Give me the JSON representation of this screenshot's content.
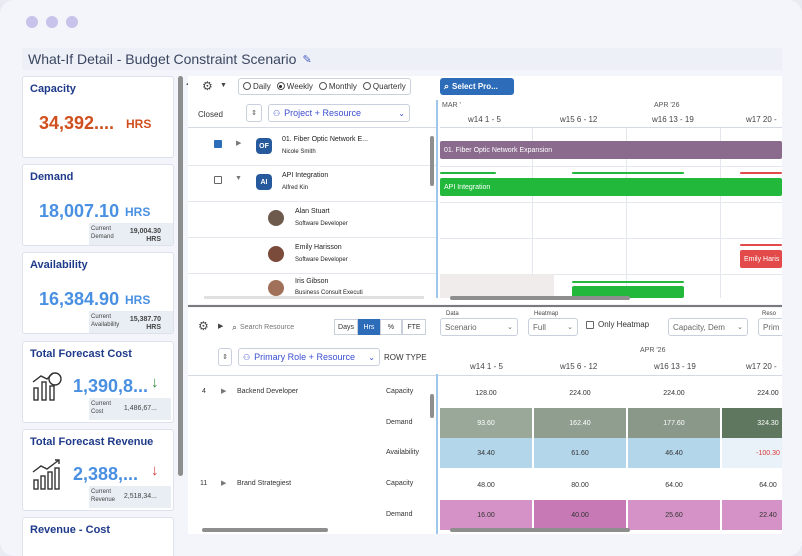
{
  "window": {
    "title": "What-If Detail - Budget Constraint Scenario"
  },
  "kpis": [
    {
      "title": "Capacity",
      "value": "34,392....",
      "unit": "HRS",
      "color": "#d04f1f"
    },
    {
      "title": "Demand",
      "value": "18,007.10",
      "unit": "HRS",
      "color": "#4a90e2",
      "sub_label": "Current Demand",
      "sub_value": "19,004.30 HRS"
    },
    {
      "title": "Availability",
      "value": "16,384.90",
      "unit": "HRS",
      "color": "#4a90e2",
      "sub_label": "Current Availability",
      "sub_value": "15,387.70 HRS"
    },
    {
      "title": "Total Forecast Cost",
      "value": "1,390,8...",
      "color": "#4a90e2",
      "sub_label": "Current Cost",
      "sub_value": "1,486,67...",
      "trend": "down",
      "trend_color": "#2e8b3b"
    },
    {
      "title": "Total Forecast Revenue",
      "value": "2,388,...",
      "color": "#4a90e2",
      "sub_label": "Current Revenue",
      "sub_value": "2,518,34...",
      "trend": "down",
      "trend_color": "#d93a3a"
    },
    {
      "title": "Revenue - Cost"
    }
  ],
  "gantt": {
    "period_options": [
      "Daily",
      "Weekly",
      "Monthly",
      "Quarterly"
    ],
    "selected_period": "Weekly",
    "select_button": "Select Pro...",
    "closed_label": "Closed",
    "grouping_label": "Project + Resource",
    "month_labels": [
      "MAR '",
      "APR '26"
    ],
    "weeks": [
      "w14 1 - 5",
      "w15 6 - 12",
      "w16 13 - 19",
      "w17 20 -"
    ],
    "rows": [
      {
        "avatar": "OF",
        "name": "01. Fiber Optic Network E...",
        "sub": "Nicole Smith",
        "checked": true,
        "bar_label": "01. Fiber Optic Network Expansion"
      },
      {
        "avatar": "AI",
        "name": "API Integration",
        "sub": "Alfred Kin",
        "checked": false,
        "bar_label": "API Integration"
      },
      {
        "name": "Alan Stuart",
        "sub": "Software Developer"
      },
      {
        "name": "Emily Harisson",
        "sub": "Software Developer",
        "bar_label": "Emily Haris"
      },
      {
        "name": "Iris Gibson",
        "sub": "Business Consult Executi"
      }
    ],
    "colors": {
      "project_bar": "#8a6b8e",
      "api_bar": "#22b83c",
      "emily_bar": "#e34b4b"
    }
  },
  "grid": {
    "search_placeholder": "Search Resource",
    "unit_tabs": [
      "Days",
      "Hrs",
      "%",
      "FTE"
    ],
    "active_unit": "Hrs",
    "data_label": "Data",
    "data_value": "Scenario",
    "heatmap_label": "Heatmap",
    "heatmap_value": "Full",
    "only_heatmap_label": "Only Heatmap",
    "rows_filter_value": "Capacity, Dem",
    "reso_label": "Reso",
    "reso_value": "Prim",
    "group_label": "Primary Role + Resource",
    "row_type_header": "ROW TYPE",
    "month_label": "APR '26",
    "weeks": [
      "w14 1 - 5",
      "w15 6 - 12",
      "w16 13 - 19",
      "w17 20 -"
    ],
    "roles": [
      {
        "num": "4",
        "name": "Backend Developer",
        "rows": [
          {
            "type": "Capacity",
            "values": [
              "128.00",
              "224.00",
              "224.00",
              "224.00"
            ]
          },
          {
            "type": "Demand",
            "values": [
              "93.60",
              "162.40",
              "177.60",
              "324.30"
            ]
          },
          {
            "type": "Availability",
            "values": [
              "34.40",
              "61.60",
              "46.40",
              "-100.30"
            ]
          }
        ]
      },
      {
        "num": "11",
        "name": "Brand Strategiest",
        "rows": [
          {
            "type": "Capacity",
            "values": [
              "48.00",
              "80.00",
              "64.00",
              "64.00"
            ]
          },
          {
            "type": "Demand",
            "values": [
              "16.00",
              "40.00",
              "25.60",
              "22.40"
            ]
          }
        ]
      }
    ]
  }
}
